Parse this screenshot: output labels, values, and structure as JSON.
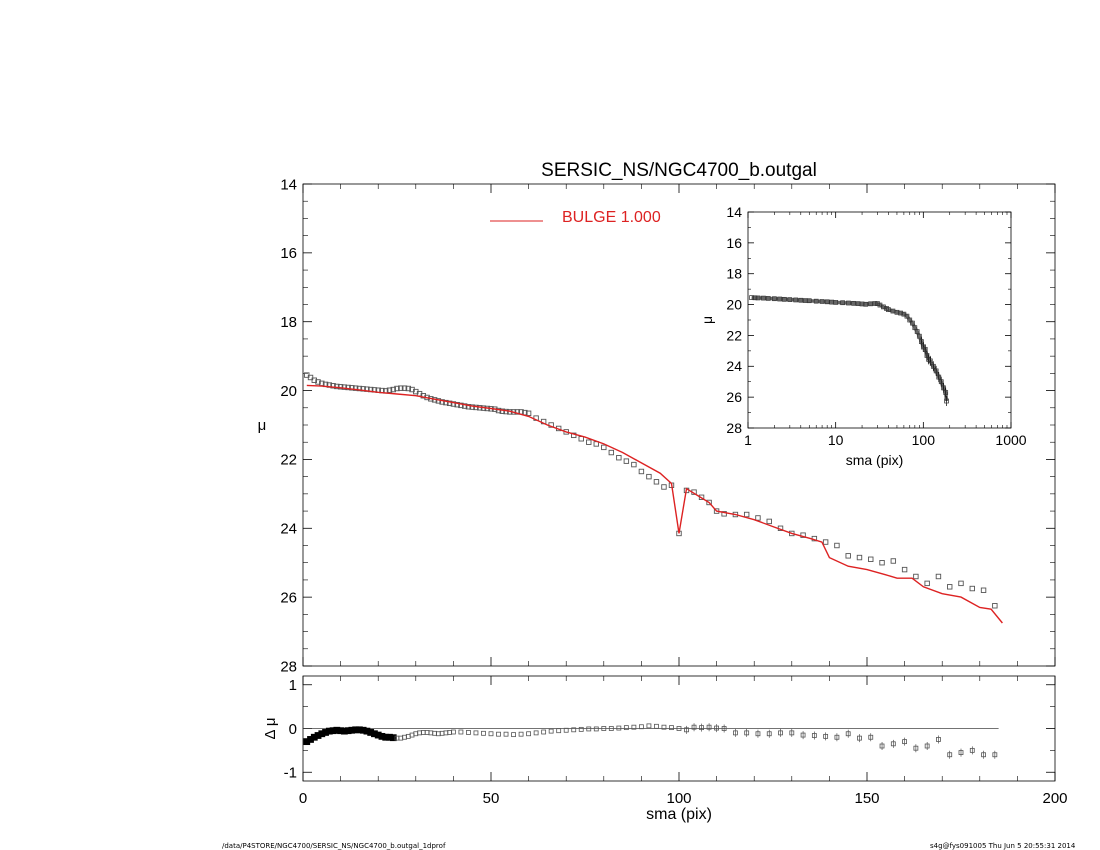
{
  "footer": {
    "left": "/data/P4STORE/NGC4700/SERSIC_NS/NGC4700_b.outgal_1dprof",
    "right": "s4g@fys091005  Thu Jun  5 20:55:31 2014"
  },
  "colors": {
    "model": "#dd2222",
    "data": "#555555",
    "axes": "#000000"
  },
  "chart_data": [
    {
      "id": "main",
      "type": "scatter",
      "title": "SERSIC_NS/NGC4700_b.outgal",
      "xlabel": "",
      "ylabel": "μ",
      "xlim": [
        0,
        200
      ],
      "ylim": [
        28,
        14
      ],
      "yticks": [
        14,
        16,
        18,
        20,
        22,
        24,
        26,
        28
      ],
      "xticks": [
        0,
        50,
        100,
        150,
        200
      ],
      "legend": {
        "placement": "top-center",
        "label": "BULGE  1.000"
      },
      "series": [
        {
          "kind": "points",
          "x": [
            1,
            2,
            3,
            4,
            5,
            6,
            7,
            8,
            9,
            10,
            11,
            12,
            13,
            14,
            15,
            16,
            17,
            18,
            19,
            20,
            21,
            22,
            23,
            24,
            25,
            26,
            27,
            28,
            29,
            30,
            31,
            32,
            33,
            34,
            35,
            36,
            37,
            38,
            39,
            40,
            41,
            42,
            43,
            44,
            45,
            46,
            47,
            48,
            49,
            50,
            51,
            52,
            53,
            54,
            55,
            56,
            57,
            58,
            59,
            60,
            62,
            64,
            66,
            68,
            70,
            72,
            74,
            76,
            78,
            80,
            82,
            84,
            86,
            88,
            90,
            92,
            94,
            96,
            98,
            100,
            102,
            104,
            106,
            108,
            110,
            112,
            115,
            118,
            121,
            124,
            127,
            130,
            133,
            136,
            139,
            142,
            145,
            148,
            151,
            154,
            157,
            160,
            163,
            166,
            169,
            172,
            175,
            178,
            181,
            184
          ],
          "y": [
            19.55,
            19.62,
            19.7,
            19.75,
            19.79,
            19.82,
            19.84,
            19.86,
            19.88,
            19.89,
            19.9,
            19.91,
            19.92,
            19.93,
            19.94,
            19.95,
            19.96,
            19.97,
            19.98,
            19.99,
            20.0,
            20.01,
            19.99,
            19.97,
            19.94,
            19.93,
            19.93,
            19.94,
            19.97,
            20.03,
            20.09,
            20.15,
            20.2,
            20.24,
            20.27,
            20.3,
            20.33,
            20.35,
            20.37,
            20.39,
            20.41,
            20.43,
            20.45,
            20.47,
            20.48,
            20.49,
            20.5,
            20.51,
            20.52,
            20.53,
            20.54,
            20.58,
            20.6,
            20.61,
            20.62,
            20.62,
            20.62,
            20.62,
            20.64,
            20.66,
            20.8,
            20.9,
            21.0,
            21.1,
            21.2,
            21.3,
            21.4,
            21.5,
            21.55,
            21.65,
            21.8,
            21.95,
            22.05,
            22.15,
            22.35,
            22.5,
            22.65,
            22.8,
            22.75,
            24.15,
            22.9,
            22.95,
            23.1,
            23.25,
            23.5,
            23.58,
            23.6,
            23.6,
            23.7,
            23.8,
            24.0,
            24.15,
            24.2,
            24.3,
            24.4,
            24.5,
            24.8,
            24.85,
            24.9,
            25.0,
            24.95,
            25.2,
            25.4,
            25.6,
            25.4,
            25.7,
            25.6,
            25.75,
            25.8,
            26.25
          ]
        },
        {
          "kind": "line",
          "name": "BULGE  1.000",
          "x": [
            1,
            5,
            10,
            15,
            20,
            25,
            30,
            35,
            40,
            45,
            50,
            55,
            60,
            65,
            70,
            75,
            80,
            85,
            90,
            95,
            98,
            100,
            102,
            105,
            108,
            110,
            115,
            120,
            125,
            130,
            135,
            138,
            140,
            145,
            150,
            155,
            158,
            162,
            165,
            170,
            175,
            180,
            183,
            186
          ],
          "y": [
            19.85,
            19.87,
            19.92,
            19.98,
            20.05,
            20.1,
            20.15,
            20.25,
            20.35,
            20.45,
            20.52,
            20.6,
            20.75,
            21.0,
            21.2,
            21.35,
            21.55,
            21.8,
            22.1,
            22.4,
            22.7,
            24.15,
            22.85,
            23.05,
            23.25,
            23.5,
            23.6,
            23.75,
            23.95,
            24.15,
            24.3,
            24.4,
            24.85,
            25.1,
            25.2,
            25.35,
            25.45,
            25.45,
            25.7,
            25.9,
            26.0,
            26.3,
            26.35,
            26.75
          ]
        }
      ]
    },
    {
      "id": "residual",
      "type": "scatter",
      "xlabel": "sma (pix)",
      "ylabel": "Δ μ",
      "xlim": [
        0,
        200
      ],
      "ylim": [
        -1.2,
        1.2
      ],
      "yticks": [
        -1,
        0,
        1
      ],
      "xticks": [
        0,
        50,
        100,
        150,
        200
      ],
      "series": [
        {
          "kind": "points",
          "x": [
            1,
            2,
            3,
            4,
            5,
            6,
            7,
            8,
            9,
            10,
            11,
            12,
            13,
            14,
            15,
            16,
            17,
            18,
            19,
            20,
            21,
            22,
            23,
            24,
            25,
            26,
            27,
            28,
            29,
            30,
            31,
            32,
            33,
            34,
            35,
            36,
            37,
            38,
            39,
            40,
            42,
            44,
            46,
            48,
            50,
            52,
            54,
            56,
            58,
            60,
            62,
            64,
            66,
            68,
            70,
            72,
            74,
            76,
            78,
            80,
            82,
            84,
            86,
            88,
            90,
            92,
            94,
            96,
            98,
            100,
            102,
            104,
            106,
            108,
            110,
            112,
            115,
            118,
            121,
            124,
            127,
            130,
            133,
            136,
            139,
            142,
            145,
            148,
            151,
            154,
            157,
            160,
            163,
            166,
            169,
            172,
            175,
            178,
            181,
            184
          ],
          "y": [
            -0.3,
            -0.25,
            -0.2,
            -0.16,
            -0.12,
            -0.09,
            -0.06,
            -0.05,
            -0.04,
            -0.05,
            -0.06,
            -0.05,
            -0.04,
            -0.03,
            -0.03,
            -0.04,
            -0.06,
            -0.09,
            -0.12,
            -0.15,
            -0.18,
            -0.2,
            -0.2,
            -0.21,
            -0.22,
            -0.22,
            -0.2,
            -0.18,
            -0.15,
            -0.12,
            -0.1,
            -0.09,
            -0.09,
            -0.1,
            -0.11,
            -0.12,
            -0.11,
            -0.1,
            -0.09,
            -0.08,
            -0.08,
            -0.09,
            -0.1,
            -0.11,
            -0.12,
            -0.13,
            -0.13,
            -0.14,
            -0.13,
            -0.12,
            -0.1,
            -0.08,
            -0.06,
            -0.05,
            -0.04,
            -0.03,
            -0.02,
            -0.01,
            -0.01,
            0.0,
            0.0,
            0.01,
            0.02,
            0.03,
            0.04,
            0.06,
            0.05,
            0.03,
            0.02,
            0.0,
            -0.03,
            0.03,
            0.02,
            0.03,
            0.01,
            0.0,
            -0.1,
            -0.1,
            -0.12,
            -0.12,
            -0.1,
            -0.1,
            -0.15,
            -0.16,
            -0.18,
            -0.2,
            -0.12,
            -0.22,
            -0.2,
            -0.4,
            -0.35,
            -0.3,
            -0.45,
            -0.4,
            -0.25,
            -0.6,
            -0.55,
            -0.5,
            -0.6,
            -0.6
          ]
        }
      ]
    },
    {
      "id": "inset",
      "type": "scatter",
      "xlabel": "sma (pix)",
      "ylabel": "μ",
      "xscale": "log",
      "xlim": [
        1,
        1000
      ],
      "ylim": [
        28,
        14
      ],
      "yticks": [
        14,
        16,
        18,
        20,
        22,
        24,
        26,
        28
      ],
      "xticks": [
        1,
        10,
        100,
        1000
      ],
      "series": [
        {
          "kind": "points",
          "x": [
            1.1,
            1.2,
            1.3,
            1.5,
            1.7,
            2,
            2.3,
            2.6,
            3,
            3.5,
            4,
            4.5,
            5,
            6,
            7,
            8,
            9,
            10,
            12,
            14,
            16,
            18,
            20,
            22,
            25,
            28,
            30,
            32,
            35,
            38,
            40,
            45,
            50,
            55,
            60,
            65,
            70,
            75,
            80,
            85,
            90,
            95,
            100,
            105,
            110,
            115,
            120,
            130,
            140,
            150,
            160,
            170,
            180,
            184
          ],
          "y": [
            19.55,
            19.56,
            19.57,
            19.58,
            19.6,
            19.62,
            19.64,
            19.66,
            19.68,
            19.7,
            19.72,
            19.74,
            19.75,
            19.78,
            19.8,
            19.82,
            19.84,
            19.86,
            19.88,
            19.9,
            19.92,
            19.94,
            19.96,
            19.98,
            19.95,
            19.93,
            19.94,
            20.03,
            20.15,
            20.25,
            20.33,
            20.42,
            20.5,
            20.55,
            20.62,
            20.75,
            21.0,
            21.2,
            21.5,
            21.75,
            22.05,
            22.4,
            22.75,
            22.9,
            23.3,
            23.55,
            23.65,
            24.0,
            24.3,
            24.7,
            25.0,
            25.4,
            25.7,
            26.25
          ]
        }
      ]
    }
  ]
}
